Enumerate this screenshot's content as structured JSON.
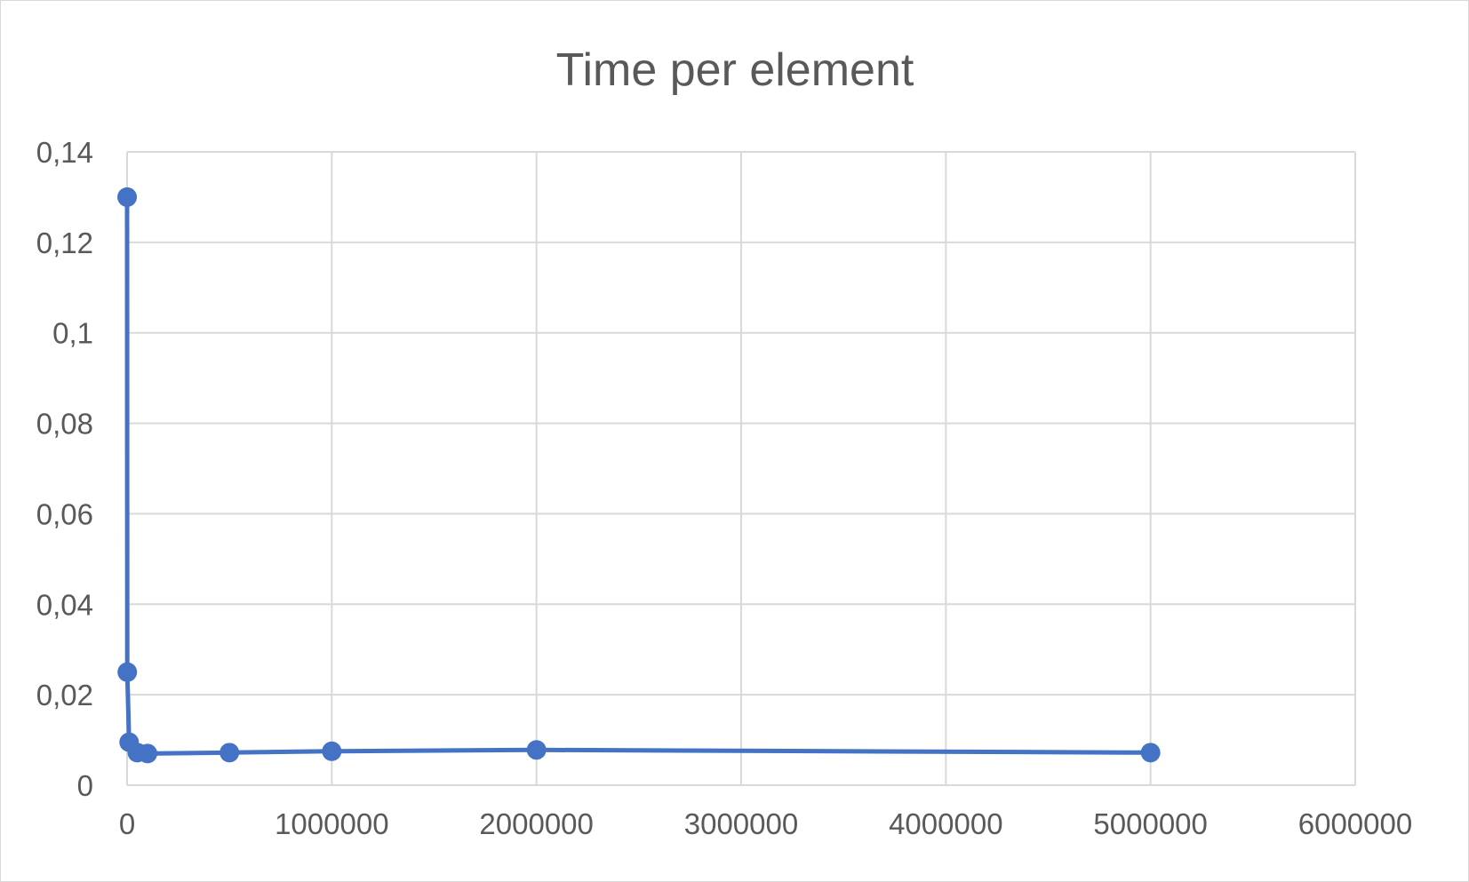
{
  "chart_data": {
    "type": "scatter",
    "title": "Time per element",
    "xlabel": "",
    "ylabel": "",
    "xlim": [
      0,
      6000000
    ],
    "ylim": [
      0,
      0.14
    ],
    "x_ticks": [
      0,
      1000000,
      2000000,
      3000000,
      4000000,
      5000000,
      6000000
    ],
    "x_tick_labels": [
      "0",
      "1000000",
      "2000000",
      "3000000",
      "4000000",
      "5000000",
      "6000000"
    ],
    "y_ticks": [
      0,
      0.02,
      0.04,
      0.06,
      0.08,
      0.1,
      0.12,
      0.14
    ],
    "y_tick_labels": [
      "0",
      "0,02",
      "0,04",
      "0,06",
      "0,08",
      "0,1",
      "0,12",
      "0,14"
    ],
    "grid": true,
    "legend": "none",
    "series": [
      {
        "color": "#4472c4",
        "x": [
          100,
          1000,
          10000,
          50000,
          100000,
          500000,
          1000000,
          2000000,
          5000000
        ],
        "y": [
          0.13,
          0.025,
          0.0095,
          0.0072,
          0.007,
          0.0072,
          0.0075,
          0.0078,
          0.0072
        ]
      }
    ]
  }
}
